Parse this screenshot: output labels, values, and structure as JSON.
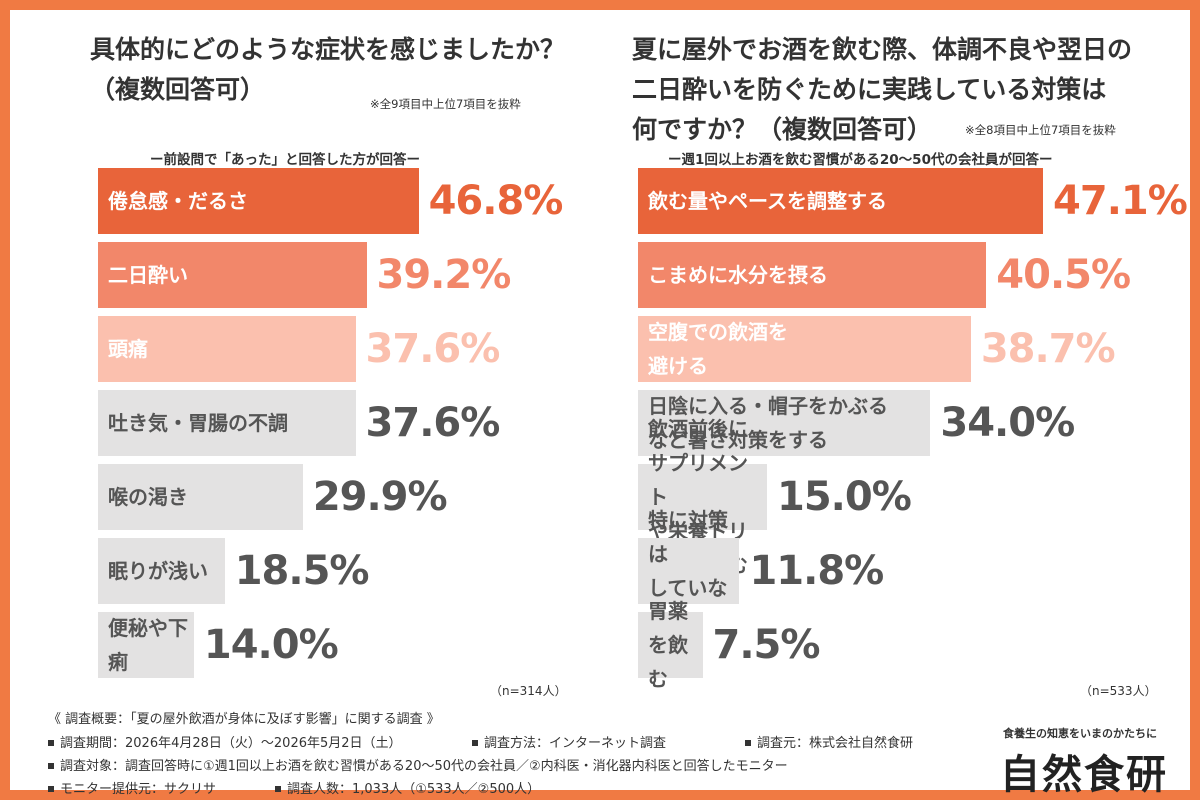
{
  "chart_data": [
    {
      "type": "bar",
      "orientation": "horizontal",
      "title": "具体的にどのような症状を感じましたか？\n（複数回答可）",
      "note": "※全9項目中上位7項目を抜粋",
      "subtitle": "ー前設問で「あった」と回答した方が回答ー",
      "categories": [
        "倦怠感・だるさ",
        "二日酔い",
        "頭痛",
        "吐き気・胃腸の不調",
        "喉の渇き",
        "眠りが浅い",
        "便秘や下痢"
      ],
      "values": [
        46.8,
        39.2,
        37.6,
        37.6,
        29.9,
        18.5,
        14.0
      ],
      "value_labels": [
        "46.8%",
        "39.2%",
        "37.6%",
        "37.6%",
        "29.9%",
        "18.5%",
        "14.0%"
      ],
      "unit": "%",
      "sample": "（n=314人）"
    },
    {
      "type": "bar",
      "orientation": "horizontal",
      "title": "夏に屋外でお酒を飲む際、体調不良や翌日の\n二日酔いを防ぐために実践している対策は\n何ですか？（複数回答可）",
      "note": "※全8項目中上位7項目を抜粋",
      "subtitle": "ー週1回以上お酒を飲む習慣がある20～50代の会社員が回答ー",
      "categories": [
        "飲む量やペースを調整する",
        "こまめに水分を摂る",
        "空腹での飲酒を\n避ける",
        "日陰に入る・帽子をかぶる\nなど暑さ対策をする",
        "飲酒前後にサプリメント\nや栄養ドリンクを飲む",
        "特に対策は\nしていない",
        "胃薬\nを飲む"
      ],
      "values": [
        47.1,
        40.5,
        38.7,
        34.0,
        15.0,
        11.8,
        7.5
      ],
      "value_labels": [
        "47.1%",
        "40.5%",
        "38.7%",
        "34.0%",
        "15.0%",
        "11.8%",
        "7.5%"
      ],
      "unit": "%",
      "sample": "（n=533人）"
    }
  ],
  "colors": {
    "rank1": "#e8643a",
    "rank2": "#f2876a",
    "rank3": "#fbc0ae",
    "grey": "#e3e2e2",
    "frame": "#f07a43",
    "white_text": "#ffffff",
    "dark_text": "#555555"
  },
  "footer": {
    "heading": "《 調査概要：「夏の屋外飲酒が身体に及ぼす影響」に関する調査 》",
    "period": "調査期間：2026年4月28日（火）～2026年5月2日（土）",
    "method": "調査方法：インターネット調査",
    "source": "調査元：株式会社自然食研",
    "target": "調査対象：調査回答時に①週1回以上お酒を飲む習慣がある20～50代の会社員／②内科医・消化器内科医と回答したモニター",
    "provider": "モニター提供元：サクリサ",
    "count": "調査人数：1,033人（①533人／②500人）"
  },
  "brand": {
    "tagline": "食養生の知恵をいまのかたちに",
    "name": "自然食研"
  }
}
